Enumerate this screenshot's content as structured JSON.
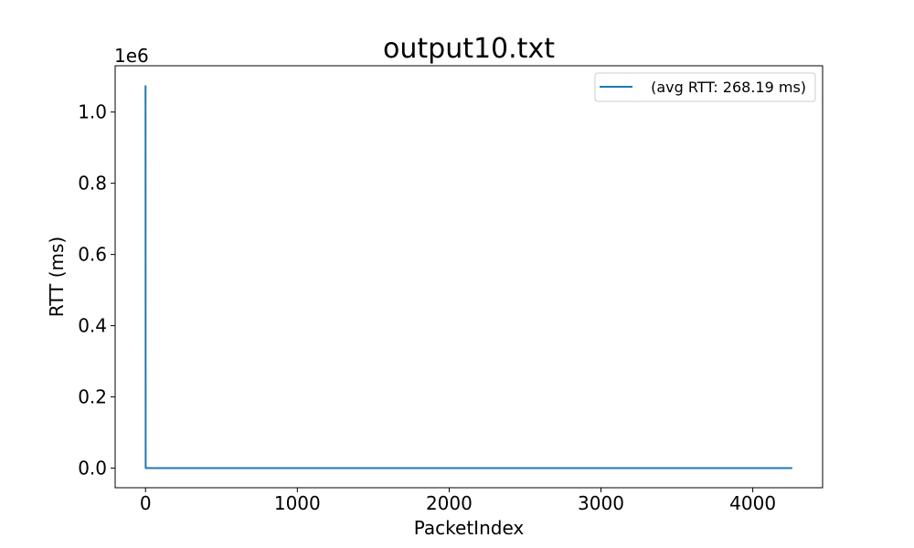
{
  "chart_data": {
    "type": "line",
    "title": "output10.txt",
    "xlabel": "PacketIndex",
    "ylabel": "RTT (ms)",
    "y_offset_label": "1e6",
    "xlim": [
      -200,
      4460
    ],
    "ylim": [
      -55000,
      1130000
    ],
    "x_ticks": [
      0,
      1000,
      2000,
      3000,
      4000
    ],
    "x_tick_labels": [
      "0",
      "1000",
      "2000",
      "3000",
      "4000"
    ],
    "y_ticks": [
      0,
      200000,
      400000,
      600000,
      800000,
      1000000
    ],
    "y_tick_labels": [
      "0.0",
      "0.2",
      "0.4",
      "0.6",
      "0.8",
      "1.0"
    ],
    "grid": false,
    "legend_position": "upper right",
    "series": [
      {
        "name": " (avg RTT: 268.19 ms)",
        "color": "#1f77b4",
        "x": [
          0,
          1,
          4260
        ],
        "y": [
          1075000,
          300,
          300
        ]
      }
    ]
  }
}
